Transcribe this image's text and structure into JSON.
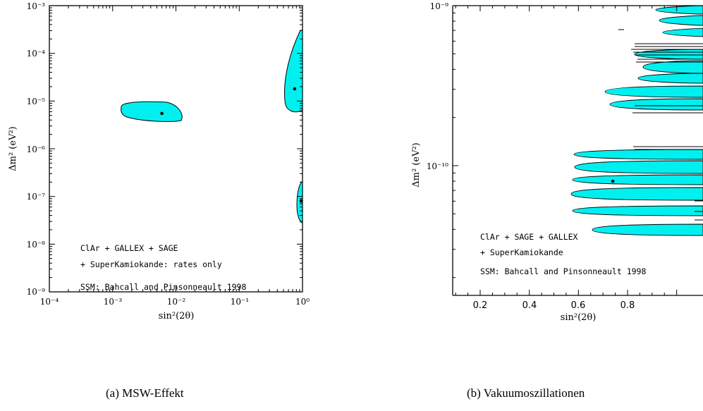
{
  "chart_data": [
    {
      "type": "contour",
      "panel": "a",
      "caption": "(a) MSW-Effekt",
      "xlabel": "sin²(2θ)",
      "ylabel": "Δm² (eV²)",
      "xscale": "log",
      "yscale": "log",
      "xlim": [
        0.0001,
        1
      ],
      "ylim": [
        1e-09,
        0.001
      ],
      "xticks": [
        "10⁻⁴",
        "10⁻³",
        "10⁻²",
        "10⁻¹",
        "10⁰"
      ],
      "yticks": [
        "10⁻⁹",
        "10⁻⁸",
        "10⁻⁷",
        "10⁻⁶",
        "10⁻⁵",
        "10⁻⁴",
        "10⁻³"
      ],
      "best_fit_points": [
        {
          "x": 0.006,
          "y": 5.5e-06
        },
        {
          "x": 0.75,
          "y": 1.8e-05
        },
        {
          "x": 0.95,
          "y": 8e-08
        }
      ],
      "annotations": [
        "ClAr + GALLEX + SAGE",
        "+ SuperKamiokande: rates only",
        "SSM: Bahcall and Pinsonneault 1998"
      ],
      "fill_color": "#00f0f0"
    },
    {
      "type": "contour",
      "panel": "b",
      "caption": "(b) Vakuumoszillationen",
      "xlabel": "sin²(2θ)",
      "ylabel": "Δm² (eV²)",
      "xscale": "linear",
      "yscale": "log",
      "xticks": [
        "0.2",
        "0.4",
        "0.6",
        "0.8"
      ],
      "yticks": [
        "10⁻⁹",
        "10⁻¹⁰"
      ],
      "best_fit_points": [
        {
          "x": 0.74,
          "y": 8e-11
        }
      ],
      "annotations": [
        "ClAr + SAGE + GALLEX",
        "+ SuperKamiokande",
        "SSM: Bahcall and Pinsonneault 1998"
      ],
      "fill_color": "#00f0f0"
    }
  ]
}
